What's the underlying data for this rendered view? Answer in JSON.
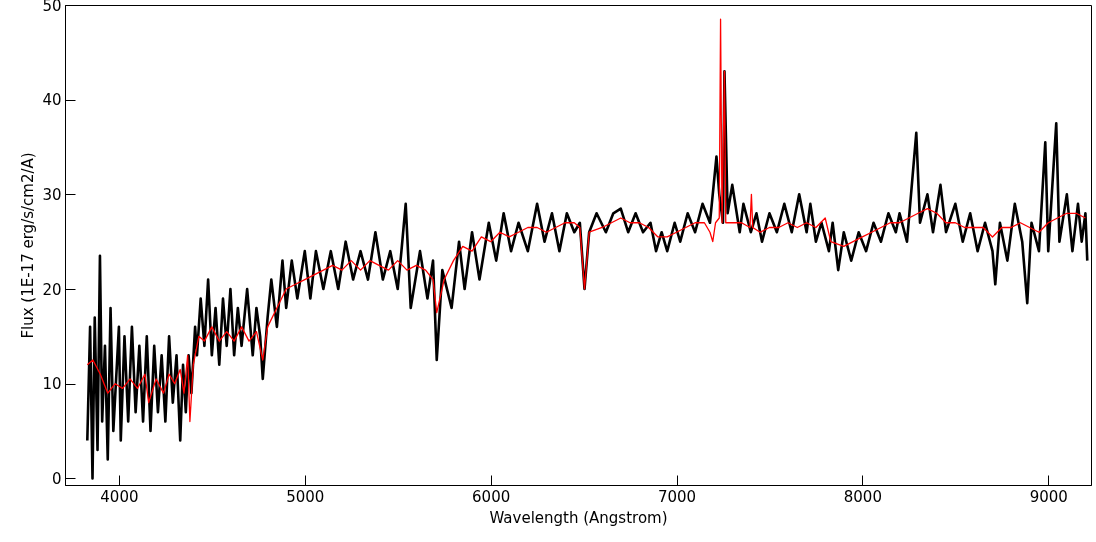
{
  "chart_data": {
    "type": "line",
    "xlabel": "Wavelength (Angstrom)",
    "ylabel": "Flux (1E-17 erg/s/cm2/A)",
    "xlim": [
      3710,
      9230
    ],
    "ylim": [
      -0.7,
      50
    ],
    "xticks": [
      4000,
      5000,
      6000,
      7000,
      8000,
      9000
    ],
    "yticks": [
      0,
      10,
      20,
      30,
      40,
      50
    ],
    "series": [
      {
        "color": "#000000",
        "x": [
          3830,
          3845,
          3858,
          3870,
          3885,
          3898,
          3910,
          3925,
          3940,
          3955,
          3970,
          4000,
          4010,
          4030,
          4050,
          4070,
          4090,
          4110,
          4130,
          4150,
          4170,
          4190,
          4210,
          4230,
          4250,
          4270,
          4290,
          4310,
          4330,
          4345,
          4360,
          4375,
          4390,
          4410,
          4420,
          4440,
          4460,
          4480,
          4500,
          4520,
          4540,
          4560,
          4580,
          4600,
          4620,
          4640,
          4660,
          4690,
          4720,
          4740,
          4760,
          4774,
          4800,
          4820,
          4850,
          4880,
          4900,
          4930,
          4960,
          5000,
          5030,
          5060,
          5100,
          5140,
          5180,
          5220,
          5260,
          5300,
          5340,
          5380,
          5420,
          5460,
          5500,
          5520,
          5543,
          5570,
          5620,
          5660,
          5690,
          5710,
          5740,
          5790,
          5830,
          5860,
          5900,
          5940,
          5990,
          6030,
          6070,
          6110,
          6150,
          6200,
          6250,
          6290,
          6330,
          6370,
          6410,
          6450,
          6480,
          6505,
          6530,
          6570,
          6620,
          6660,
          6700,
          6740,
          6780,
          6820,
          6860,
          6890,
          6920,
          6950,
          6990,
          7020,
          7060,
          7100,
          7140,
          7180,
          7215,
          7230,
          7250,
          7258,
          7275,
          7300,
          7340,
          7360,
          7400,
          7430,
          7460,
          7500,
          7540,
          7580,
          7620,
          7660,
          7700,
          7720,
          7750,
          7780,
          7820,
          7840,
          7870,
          7900,
          7940,
          7980,
          8020,
          8060,
          8100,
          8140,
          8180,
          8200,
          8240,
          8290,
          8310,
          8350,
          8380,
          8420,
          8450,
          8500,
          8540,
          8580,
          8620,
          8660,
          8700,
          8715,
          8740,
          8780,
          8820,
          8860,
          8887,
          8910,
          8950,
          8984,
          9000,
          9043,
          9060,
          9100,
          9130,
          9160,
          9180,
          9200,
          9210
        ],
        "values": [
          4,
          16,
          0,
          17,
          3,
          23.5,
          6,
          14,
          2,
          18,
          5,
          16,
          4,
          15,
          6,
          16,
          7,
          14,
          6,
          15,
          5,
          14,
          7,
          13,
          6,
          15,
          8,
          13,
          4,
          12,
          7,
          13,
          9,
          16,
          13,
          19,
          14,
          21,
          13,
          18,
          12,
          19,
          14,
          20,
          13,
          18,
          14,
          20,
          13,
          18,
          15,
          10.5,
          17,
          21,
          16,
          23,
          18,
          23,
          19,
          24,
          19,
          24,
          20,
          24,
          20,
          25,
          21,
          24,
          21,
          26,
          21,
          24,
          20,
          24,
          29,
          18,
          24,
          19,
          23,
          12.5,
          22,
          18,
          25,
          20,
          26,
          21,
          27,
          23,
          28,
          24,
          27,
          24,
          29,
          25,
          28,
          24,
          28,
          26,
          27,
          20,
          26,
          28,
          26,
          28,
          28.5,
          26,
          28,
          26,
          27,
          24,
          26,
          24,
          27,
          25,
          28,
          26,
          29,
          27,
          34,
          30,
          27,
          43,
          28,
          31,
          26,
          29,
          26,
          28,
          25,
          28,
          26,
          29,
          26,
          30,
          26,
          29,
          25,
          27,
          24,
          27,
          22,
          26,
          23,
          26,
          24,
          27,
          25,
          28,
          26,
          28,
          25,
          36.5,
          27,
          30,
          26,
          31,
          26,
          29,
          25,
          28,
          24,
          27,
          24,
          20.5,
          27,
          23,
          29,
          25,
          18.5,
          27,
          24,
          35.5,
          24,
          37.5,
          25,
          30,
          24,
          29,
          25,
          28,
          23
        ]
      },
      {
        "color": "#ff0000",
        "x": [
          3830,
          3860,
          3900,
          3940,
          3980,
          4020,
          4060,
          4100,
          4140,
          4160,
          4200,
          4240,
          4270,
          4300,
          4330,
          4350,
          4370,
          4382,
          4400,
          4430,
          4460,
          4500,
          4540,
          4580,
          4620,
          4660,
          4700,
          4740,
          4774,
          4800,
          4850,
          4900,
          4950,
          5000,
          5050,
          5100,
          5150,
          5200,
          5250,
          5300,
          5350,
          5400,
          5450,
          5500,
          5550,
          5600,
          5650,
          5690,
          5710,
          5750,
          5800,
          5850,
          5900,
          5950,
          6000,
          6050,
          6100,
          6150,
          6200,
          6250,
          6300,
          6350,
          6400,
          6450,
          6480,
          6505,
          6530,
          6600,
          6650,
          6700,
          6750,
          6800,
          6850,
          6900,
          6950,
          7000,
          7050,
          7100,
          7150,
          7180,
          7195,
          7210,
          7230,
          7237,
          7245,
          7258,
          7265,
          7300,
          7350,
          7395,
          7403,
          7410,
          7450,
          7500,
          7550,
          7600,
          7650,
          7700,
          7750,
          7800,
          7830,
          7900,
          7950,
          8000,
          8050,
          8100,
          8150,
          8200,
          8250,
          8300,
          8350,
          8400,
          8450,
          8500,
          8550,
          8600,
          8650,
          8700,
          8750,
          8800,
          8850,
          8900,
          8950,
          9000,
          9050,
          9100,
          9150,
          9200
        ],
        "values": [
          12,
          12.5,
          11,
          9,
          10,
          9.5,
          10.5,
          9.5,
          11,
          8,
          10.5,
          9,
          11,
          10,
          11.5,
          9,
          13,
          6,
          12,
          15,
          14.5,
          16,
          14.5,
          15.5,
          14.5,
          16,
          14.5,
          15.5,
          12.5,
          16,
          18,
          20,
          20.5,
          21,
          21.5,
          22,
          22.5,
          22,
          23,
          22,
          23,
          22.5,
          22,
          23,
          22,
          22.5,
          22,
          21,
          17.5,
          21,
          23,
          24.5,
          24,
          25.5,
          25,
          26,
          25.5,
          26,
          26.5,
          26.5,
          26,
          26.5,
          27,
          27,
          26.5,
          20,
          26,
          26.5,
          27,
          27.5,
          27,
          27,
          26.5,
          25.5,
          25.5,
          26,
          26.5,
          27,
          27,
          26,
          25,
          27,
          27.5,
          48.5,
          27,
          43,
          27,
          27,
          27,
          26.5,
          30,
          26.5,
          26,
          26.5,
          26.5,
          27,
          26.5,
          27,
          26.5,
          27.5,
          25,
          24.5,
          25,
          25.5,
          26,
          26.5,
          27,
          27,
          27.5,
          28,
          28.5,
          28,
          27,
          27,
          26.5,
          26.5,
          26.5,
          25.5,
          26.5,
          26.5,
          27,
          26.5,
          26,
          27,
          27.5,
          28,
          28,
          27.5
        ]
      }
    ]
  }
}
